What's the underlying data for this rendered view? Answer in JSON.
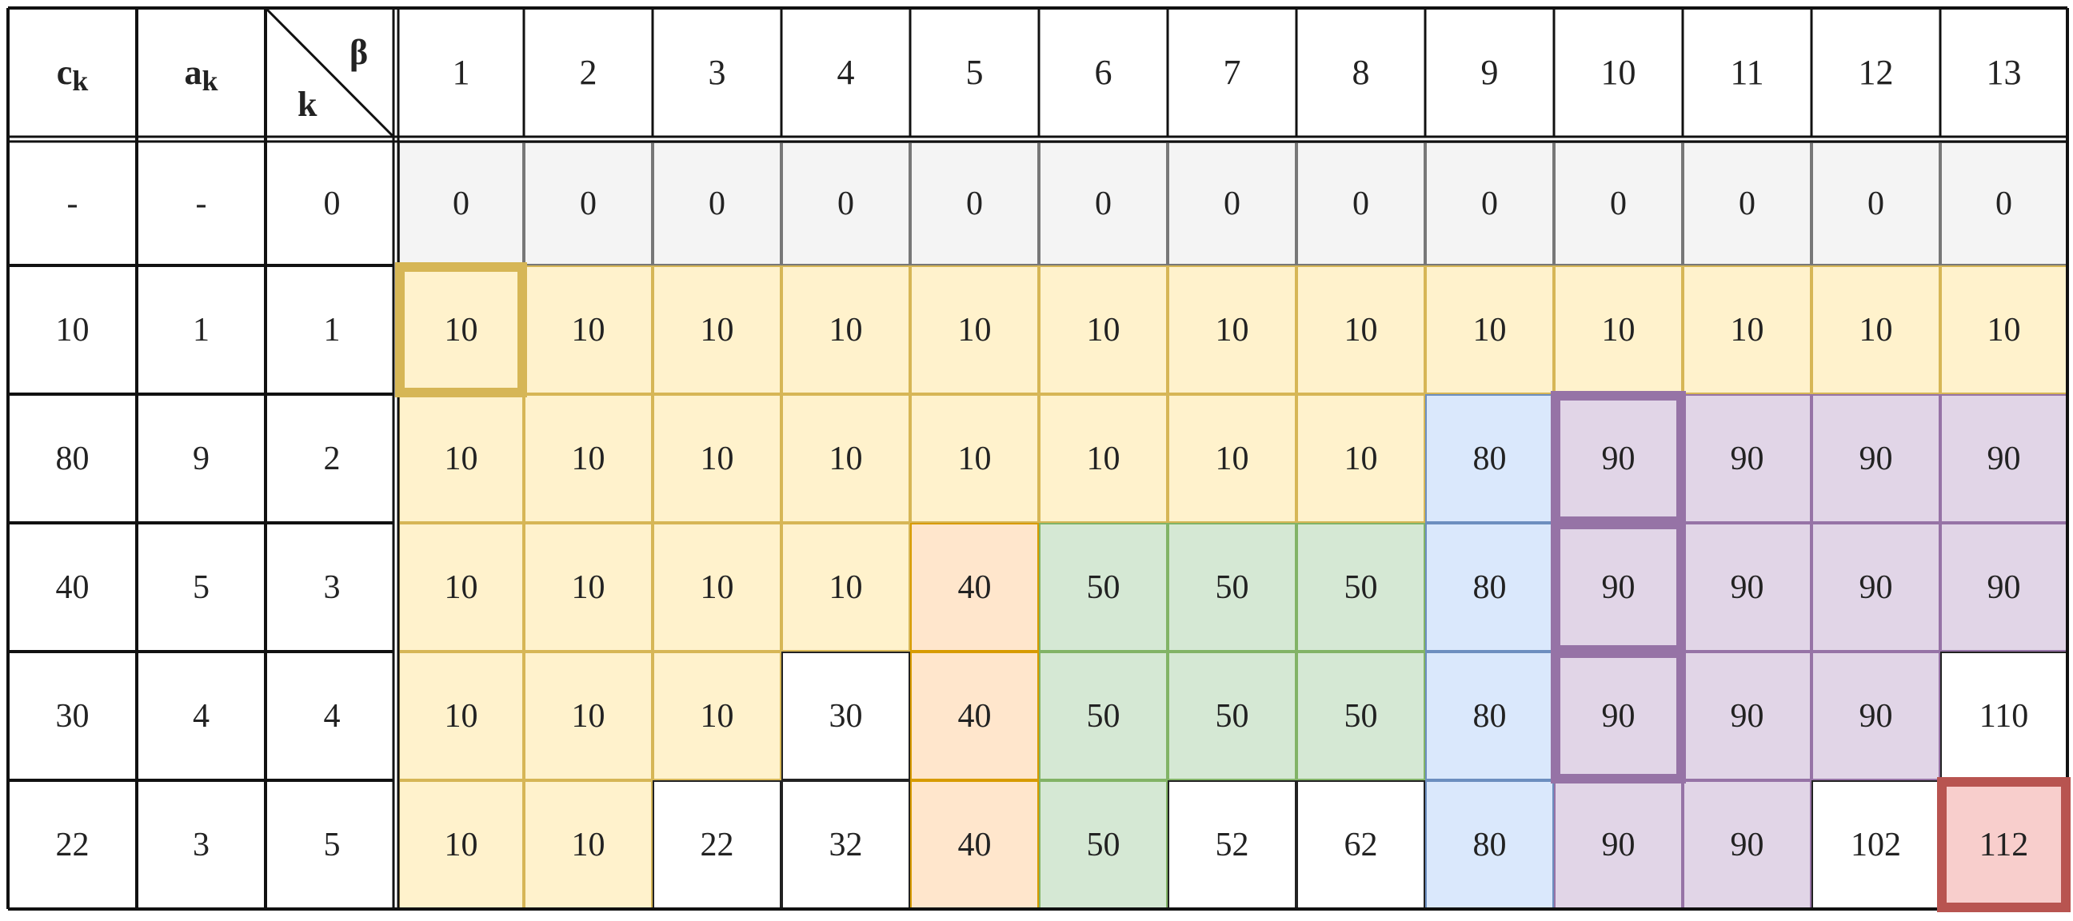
{
  "headers": {
    "ck": "c",
    "ck_sub": "k",
    "ak": "a",
    "ak_sub": "k",
    "k": "k",
    "beta": "β",
    "beta_values": [
      "1",
      "2",
      "3",
      "4",
      "5",
      "6",
      "7",
      "8",
      "9",
      "10",
      "11",
      "12",
      "13"
    ]
  },
  "rows": [
    {
      "ck": "-",
      "ak": "-",
      "k": "0",
      "values": [
        "0",
        "0",
        "0",
        "0",
        "0",
        "0",
        "0",
        "0",
        "0",
        "0",
        "0",
        "0",
        "0"
      ]
    },
    {
      "ck": "10",
      "ak": "1",
      "k": "1",
      "values": [
        "10",
        "10",
        "10",
        "10",
        "10",
        "10",
        "10",
        "10",
        "10",
        "10",
        "10",
        "10",
        "10"
      ]
    },
    {
      "ck": "80",
      "ak": "9",
      "k": "2",
      "values": [
        "10",
        "10",
        "10",
        "10",
        "10",
        "10",
        "10",
        "10",
        "80",
        "90",
        "90",
        "90",
        "90"
      ]
    },
    {
      "ck": "40",
      "ak": "5",
      "k": "3",
      "values": [
        "10",
        "10",
        "10",
        "10",
        "40",
        "50",
        "50",
        "50",
        "80",
        "90",
        "90",
        "90",
        "90"
      ]
    },
    {
      "ck": "30",
      "ak": "4",
      "k": "4",
      "values": [
        "10",
        "10",
        "10",
        "30",
        "40",
        "50",
        "50",
        "50",
        "80",
        "90",
        "90",
        "90",
        "110"
      ]
    },
    {
      "ck": "22",
      "ak": "3",
      "k": "5",
      "values": [
        "10",
        "10",
        "22",
        "32",
        "40",
        "50",
        "52",
        "62",
        "80",
        "90",
        "90",
        "102",
        "112"
      ]
    }
  ],
  "fills": [
    [
      "gray",
      "gray",
      "gray",
      "gray",
      "gray",
      "gray",
      "gray",
      "gray",
      "gray",
      "gray",
      "gray",
      "gray",
      "gray"
    ],
    [
      "yellow",
      "yellow",
      "yellow",
      "yellow",
      "yellow",
      "yellow",
      "yellow",
      "yellow",
      "yellow",
      "yellow",
      "yellow",
      "yellow",
      "yellow"
    ],
    [
      "yellow",
      "yellow",
      "yellow",
      "yellow",
      "yellow",
      "yellow",
      "yellow",
      "yellow",
      "blue",
      "purple",
      "purple",
      "purple",
      "purple"
    ],
    [
      "yellow",
      "yellow",
      "yellow",
      "yellow",
      "orange",
      "green",
      "green",
      "green",
      "blue",
      "purple",
      "purple",
      "purple",
      "purple"
    ],
    [
      "yellow",
      "yellow",
      "yellow",
      "white",
      "orange",
      "green",
      "green",
      "green",
      "blue",
      "purple",
      "purple",
      "purple",
      "white"
    ],
    [
      "yellow",
      "yellow",
      "white",
      "white",
      "orange",
      "green",
      "white",
      "white",
      "blue",
      "purple",
      "purple",
      "white",
      "red"
    ]
  ],
  "colors": {
    "gray": {
      "fill": "#f4f4f4",
      "border": "#777777"
    },
    "yellow": {
      "fill": "#fff2cc",
      "border": "#d6b656"
    },
    "blue": {
      "fill": "#dae8fc",
      "border": "#6c8ebf"
    },
    "purple": {
      "fill": "#e1d5e7",
      "border": "#9673a6"
    },
    "orange": {
      "fill": "#ffe6cc",
      "border": "#d79b00"
    },
    "green": {
      "fill": "#d5e8d4",
      "border": "#82b366"
    },
    "red": {
      "fill": "#f8cecc",
      "border": "#b85450"
    },
    "white": {
      "fill": "#ffffff",
      "border": "#222222"
    },
    "grid": "#111111"
  },
  "highlights": [
    {
      "row": 1,
      "col": 1,
      "color": "#d6b656"
    },
    {
      "row": 2,
      "col": 10,
      "color": "#9673a6"
    },
    {
      "row": 3,
      "col": 10,
      "color": "#9673a6"
    },
    {
      "row": 4,
      "col": 10,
      "color": "#9673a6"
    },
    {
      "row": 5,
      "col": 13,
      "color": "#b85450"
    }
  ]
}
